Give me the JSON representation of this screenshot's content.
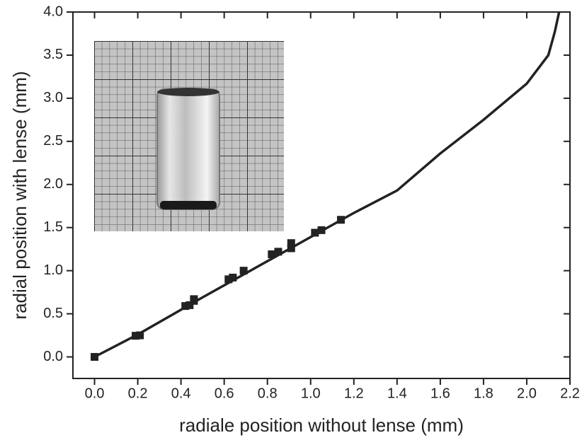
{
  "chart_data": {
    "type": "scatter",
    "x_label": "radiale position without lense (mm)",
    "y_label": "radial position with lense (mm)",
    "xlim": [
      -0.1,
      2.2
    ],
    "ylim": [
      -0.25,
      4.0
    ],
    "xticks": [
      {
        "value": 0,
        "label": "0.0"
      },
      0.2,
      0.4,
      0.6,
      0.8,
      {
        "value": 1,
        "label": "1.0"
      },
      1.2,
      1.4,
      1.6,
      1.8,
      {
        "value": 2,
        "label": "2.0"
      },
      2.2
    ],
    "yticks": [
      {
        "value": 0,
        "label": "0.0"
      },
      0.5,
      {
        "value": 1,
        "label": "1.0"
      },
      1.5,
      {
        "value": 2,
        "label": "2.0"
      },
      2.5,
      {
        "value": 3,
        "label": "3.0"
      },
      3.5,
      {
        "value": 4,
        "label": "4.0"
      }
    ],
    "series": [
      {
        "type": "scatter",
        "color": "#222222",
        "x": [
          0,
          0.19,
          0.21,
          0.42,
          0.44,
          0.46,
          0.46,
          0.62,
          0.64,
          0.69,
          0.82,
          0.85,
          0.91,
          0.91,
          1.02,
          1.05,
          1.14
        ],
        "values": [
          0,
          0.245,
          0.25,
          0.59,
          0.6,
          0.67,
          0.65,
          0.9,
          0.92,
          1.0,
          1.19,
          1.22,
          1.26,
          1.32,
          1.44,
          1.47,
          1.59
        ]
      },
      {
        "type": "line",
        "color": "#222222",
        "x": [
          0,
          0.2,
          0.5,
          1.0,
          1.2,
          1.4,
          1.6,
          1.8,
          2.0,
          2.1,
          2.13,
          2.15
        ],
        "values": [
          0,
          0.26,
          0.69,
          1.39,
          1.67,
          1.93,
          2.36,
          2.75,
          3.17,
          3.5,
          3.77,
          4.0
        ]
      }
    ]
  }
}
